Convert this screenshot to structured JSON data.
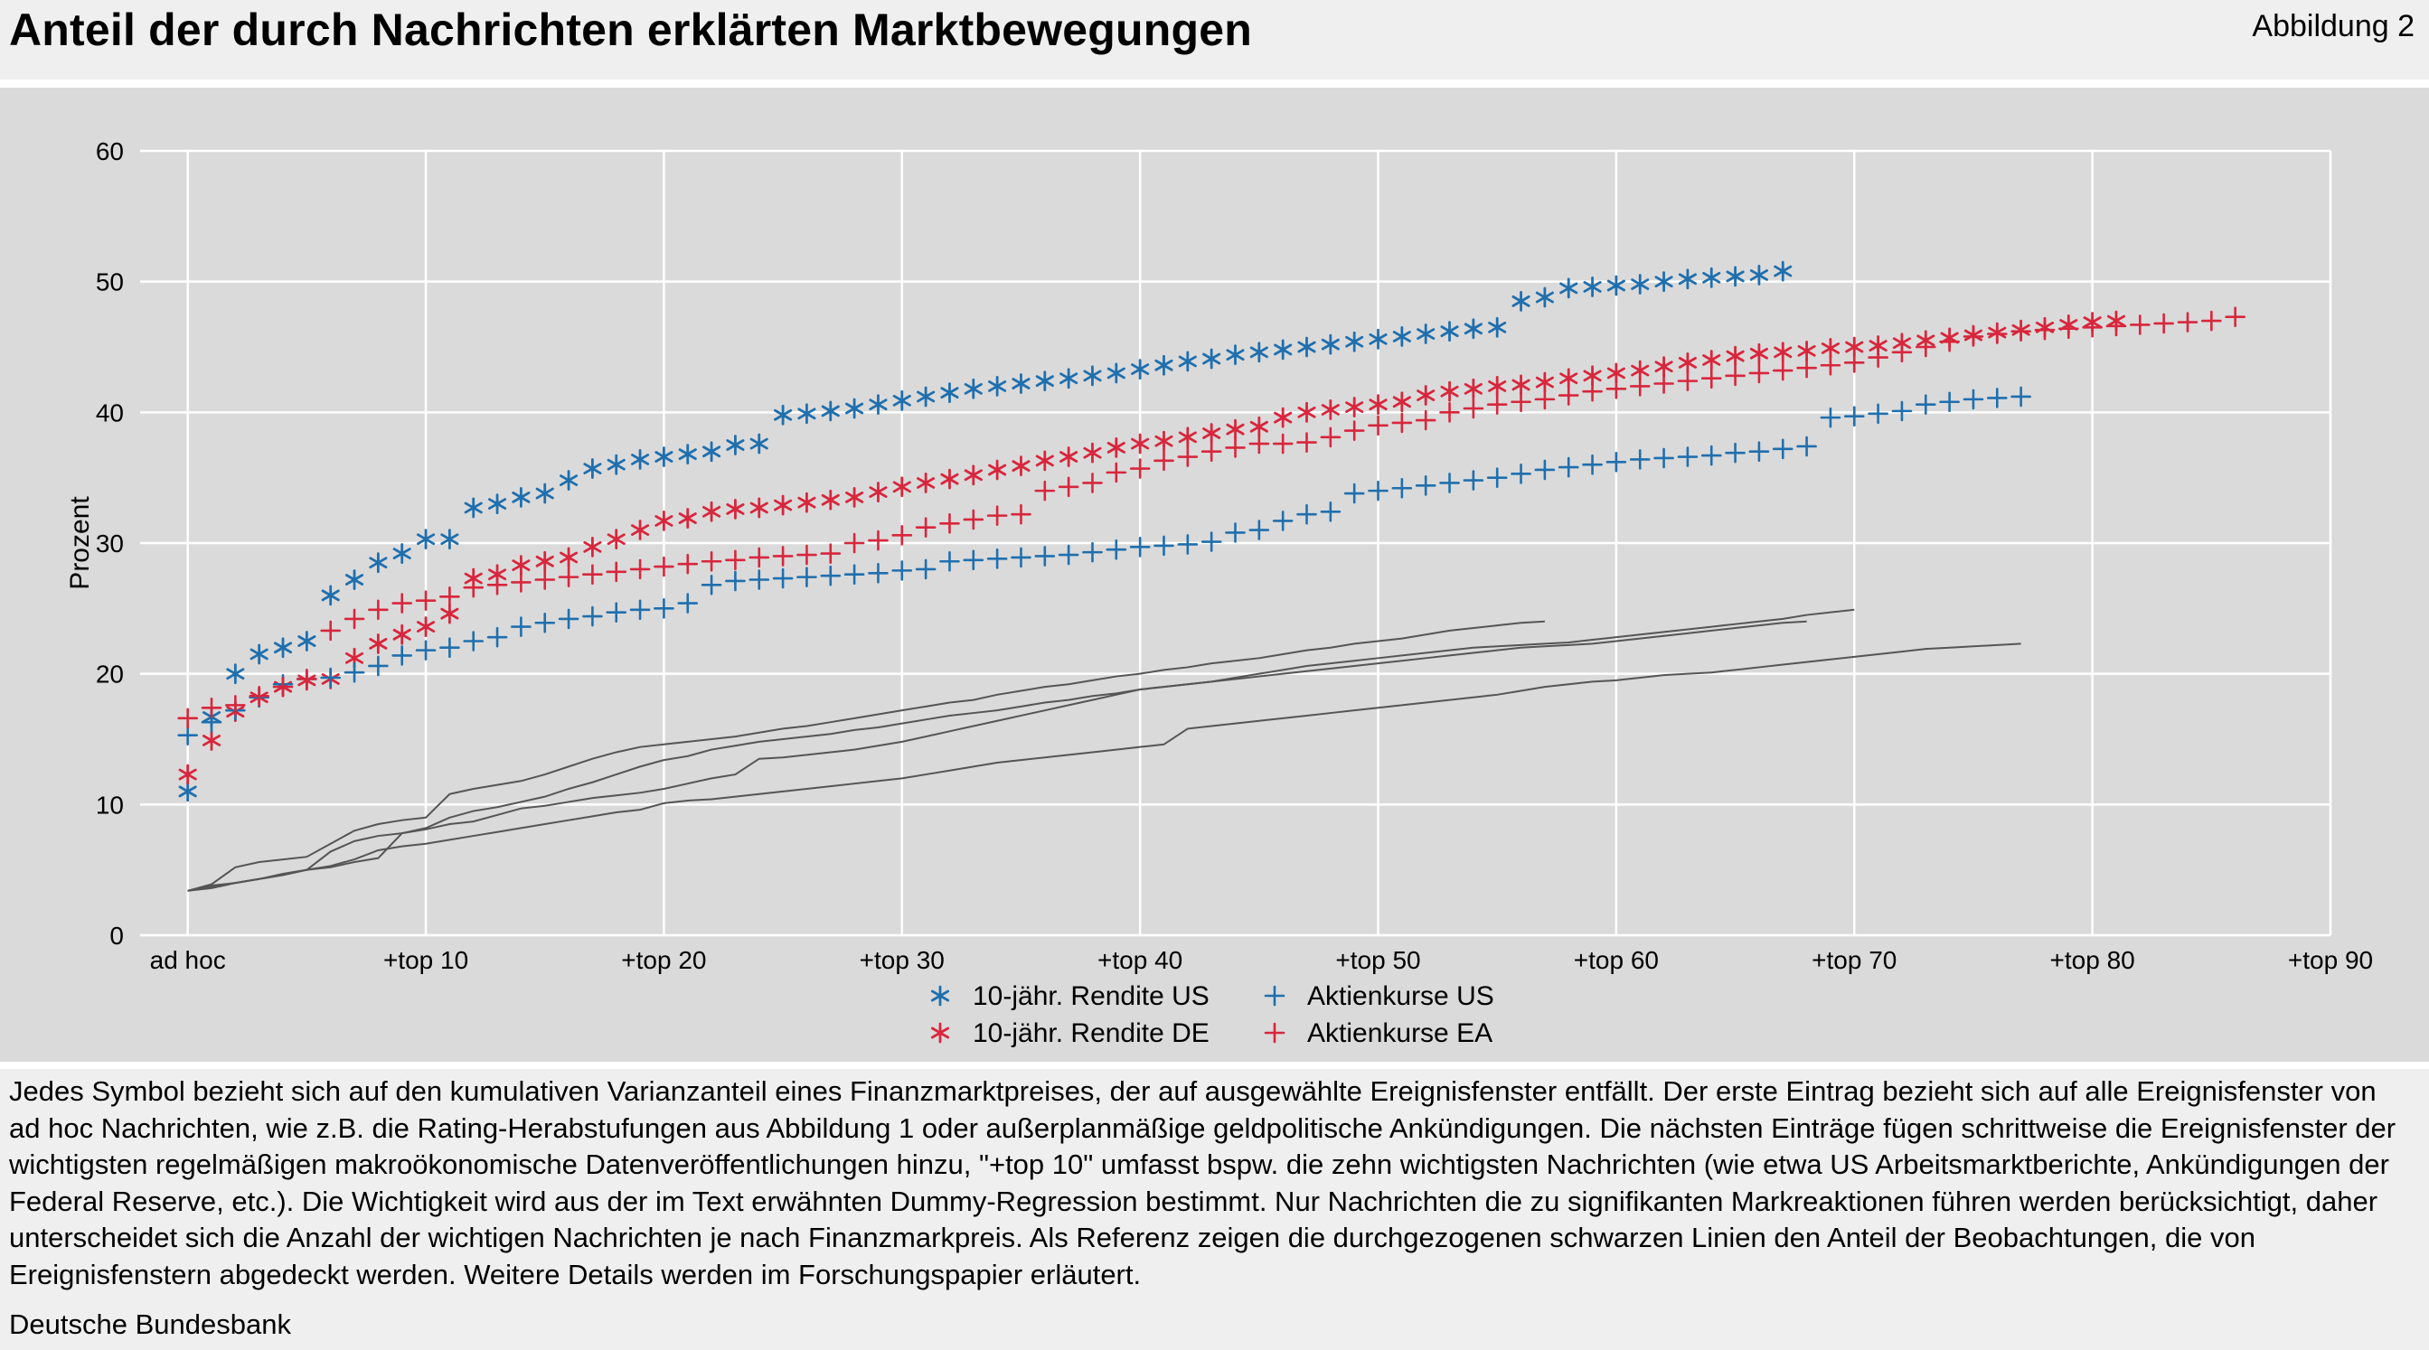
{
  "header": {
    "title": "Anteil der durch Nachrichten erklärten Marktbewegungen",
    "figure_label": "Abbildung 2"
  },
  "footer": {
    "note": "Jedes Symbol bezieht sich auf den kumulativen Varianzanteil eines Finanzmarktpreises, der auf ausgewählte Ereignisfenster entfällt. Der erste Eintrag bezieht sich auf alle Ereignisfenster von ad hoc Nachrichten, wie z.B. die Rating-Herabstufungen aus Abbildung 1 oder außerplanmäßige geldpolitische Ankündigungen. Die nächsten Einträge fügen schrittweise die Ereignisfenster der wichtigsten regelmäßigen makroökonomische Datenveröffentlichungen hinzu, \"+top 10\" umfasst bspw. die zehn wichtigsten Nachrichten (wie etwa US Arbeitsmarktberichte, Ankündigungen der Federal Reserve, etc.). Die Wichtigkeit wird aus der im Text erwähnten Dummy-Regression bestimmt. Nur Nachrichten die zu signifikanten Markreaktionen führen werden berücksichtigt, daher unterscheidet sich die Anzahl der wichtigen Nachrichten je nach Finanzmarkpreis. Als Referenz zeigen die durchgezogenen schwarzen Linien den Anteil der Beobachtungen, die von Ereignisfenstern abgedeckt werden. Weitere Details werden im Forschungspapier erläutert.",
    "source": "Deutsche Bundesbank"
  },
  "chart_data": {
    "type": "scatter",
    "title": "",
    "xlabel": "",
    "ylabel": "Prozent",
    "xlim": [
      -2,
      90
    ],
    "ylim": [
      0,
      60
    ],
    "yticks": [
      0,
      10,
      20,
      30,
      40,
      50,
      60
    ],
    "xticks": [
      {
        "x": 0,
        "label": "ad hoc"
      },
      {
        "x": 10,
        "label": "+top 10"
      },
      {
        "x": 20,
        "label": "+top 20"
      },
      {
        "x": 30,
        "label": "+top 30"
      },
      {
        "x": 40,
        "label": "+top 40"
      },
      {
        "x": 50,
        "label": "+top 50"
      },
      {
        "x": 60,
        "label": "+top 60"
      },
      {
        "x": 70,
        "label": "+top 70"
      },
      {
        "x": 80,
        "label": "+top 80"
      },
      {
        "x": 90,
        "label": "+top 90"
      }
    ],
    "grid": true,
    "legend_position": "bottom-center",
    "colors": {
      "blue": "#1f6fae",
      "red": "#d8263c",
      "line": "#555555",
      "grid": "#ffffff",
      "panel": "#dadada"
    },
    "series": [
      {
        "name": "10-jähr. Rendite US",
        "marker": "asterisk",
        "color": "#1f6fae",
        "values": [
          11.0,
          16.7,
          20.0,
          21.5,
          22.0,
          22.5,
          26.0,
          27.2,
          28.5,
          29.2,
          30.3,
          30.3,
          32.7,
          33.0,
          33.5,
          33.8,
          34.8,
          35.7,
          36.0,
          36.4,
          36.6,
          36.8,
          37.0,
          37.5,
          37.6,
          39.8,
          39.9,
          40.1,
          40.3,
          40.6,
          40.9,
          41.2,
          41.5,
          41.8,
          42.0,
          42.2,
          42.4,
          42.6,
          42.8,
          43.0,
          43.3,
          43.6,
          43.9,
          44.1,
          44.4,
          44.6,
          44.8,
          45.0,
          45.2,
          45.4,
          45.6,
          45.8,
          46.0,
          46.2,
          46.4,
          46.5,
          48.5,
          48.8,
          49.5,
          49.6,
          49.7,
          49.8,
          50.0,
          50.2,
          50.3,
          50.4,
          50.5,
          50.8
        ]
      },
      {
        "name": "10-jähr. Rendite DE",
        "marker": "asterisk",
        "color": "#d8263c",
        "values": [
          12.3,
          14.9,
          17.1,
          18.2,
          19.0,
          19.5,
          19.6,
          21.2,
          22.3,
          23.0,
          23.6,
          24.6,
          27.3,
          27.6,
          28.3,
          28.6,
          28.9,
          29.7,
          30.3,
          31.0,
          31.7,
          31.9,
          32.4,
          32.6,
          32.7,
          32.9,
          33.1,
          33.3,
          33.5,
          33.9,
          34.3,
          34.6,
          34.9,
          35.2,
          35.6,
          35.9,
          36.3,
          36.6,
          36.9,
          37.3,
          37.6,
          37.8,
          38.1,
          38.4,
          38.7,
          38.9,
          39.6,
          40.0,
          40.2,
          40.4,
          40.6,
          40.8,
          41.3,
          41.6,
          41.8,
          42.0,
          42.1,
          42.3,
          42.6,
          42.8,
          43.0,
          43.2,
          43.5,
          43.8,
          44.0,
          44.3,
          44.5,
          44.6,
          44.7,
          44.9,
          45.0,
          45.1,
          45.3,
          45.5,
          45.7,
          45.9,
          46.1,
          46.3,
          46.5,
          46.7,
          46.9,
          47.0
        ]
      },
      {
        "name": "Aktienkurse US",
        "marker": "plus",
        "color": "#1f6fae",
        "values": [
          15.3,
          16.3,
          17.2,
          18.2,
          19.2,
          19.6,
          19.7,
          20.1,
          20.6,
          21.4,
          21.8,
          22.0,
          22.5,
          22.8,
          23.6,
          23.9,
          24.2,
          24.4,
          24.7,
          24.9,
          25.0,
          25.4,
          26.8,
          27.1,
          27.2,
          27.3,
          27.4,
          27.5,
          27.6,
          27.7,
          27.9,
          28.0,
          28.6,
          28.7,
          28.8,
          28.9,
          29.0,
          29.1,
          29.3,
          29.5,
          29.7,
          29.8,
          29.9,
          30.1,
          30.8,
          31.0,
          31.7,
          32.2,
          32.4,
          33.8,
          34.0,
          34.2,
          34.4,
          34.6,
          34.8,
          35.0,
          35.3,
          35.6,
          35.8,
          36.0,
          36.2,
          36.4,
          36.5,
          36.6,
          36.7,
          36.9,
          37.0,
          37.2,
          37.4,
          39.6,
          39.7,
          39.9,
          40.1,
          40.6,
          40.8,
          41.0,
          41.1,
          41.2
        ]
      },
      {
        "name": "Aktienkurse EA",
        "marker": "plus",
        "color": "#d8263c",
        "values": [
          16.6,
          17.4,
          17.6,
          18.3,
          19.0,
          19.6,
          23.3,
          24.2,
          24.9,
          25.4,
          25.6,
          25.9,
          26.6,
          26.8,
          27.0,
          27.2,
          27.4,
          27.6,
          27.8,
          28.0,
          28.2,
          28.4,
          28.6,
          28.7,
          28.9,
          29.0,
          29.1,
          29.2,
          30.0,
          30.2,
          30.6,
          31.2,
          31.5,
          31.8,
          32.1,
          32.2,
          34.0,
          34.3,
          34.6,
          35.4,
          35.7,
          36.3,
          36.6,
          37.0,
          37.3,
          37.6,
          37.6,
          37.7,
          38.1,
          38.6,
          39.0,
          39.2,
          39.4,
          40.0,
          40.3,
          40.6,
          40.8,
          41.0,
          41.3,
          41.6,
          41.8,
          42.0,
          42.2,
          42.4,
          42.6,
          42.8,
          43.0,
          43.2,
          43.4,
          43.6,
          43.8,
          44.2,
          44.6,
          45.0,
          45.4,
          45.8,
          46.0,
          46.2,
          46.3,
          46.4,
          46.5,
          46.6,
          46.7,
          46.8,
          46.9,
          47.0,
          47.3
        ]
      },
      {
        "name": "",
        "marker": "line",
        "color": "#555555",
        "values": [
          3.4,
          3.8,
          4.0,
          4.3,
          4.6,
          5.0,
          5.2,
          5.6,
          5.9,
          7.8,
          8.2,
          9.0,
          9.5,
          9.8,
          10.2,
          10.6,
          11.2,
          11.7,
          12.3,
          12.9,
          13.4,
          13.7,
          14.2,
          14.5,
          14.8,
          15.0,
          15.2,
          15.4,
          15.7,
          15.9,
          16.2,
          16.5,
          16.8,
          17.0,
          17.2,
          17.5,
          17.8,
          18.0,
          18.3,
          18.5,
          18.8,
          19.0,
          19.2,
          19.4,
          19.6,
          19.8,
          20.0,
          20.2,
          20.4,
          20.6,
          20.8,
          21.0,
          21.2,
          21.4,
          21.6,
          21.8,
          22.0,
          22.1,
          22.2,
          22.3,
          22.5,
          22.7,
          22.9,
          23.1,
          23.3,
          23.5,
          23.7,
          23.9,
          24.0
        ]
      },
      {
        "name": "",
        "marker": "line",
        "color": "#555555",
        "values": [
          3.4,
          3.9,
          5.2,
          5.6,
          5.8,
          6.0,
          7.0,
          8.0,
          8.5,
          8.8,
          9.0,
          10.8,
          11.2,
          11.5,
          11.8,
          12.3,
          12.9,
          13.5,
          14.0,
          14.4,
          14.6,
          14.8,
          15.0,
          15.2,
          15.5,
          15.8,
          16.0,
          16.3,
          16.6,
          16.9,
          17.2,
          17.5,
          17.8,
          18.0,
          18.4,
          18.7,
          19.0,
          19.2,
          19.5,
          19.8,
          20.0,
          20.3,
          20.5,
          20.8,
          21.0,
          21.2,
          21.5,
          21.8,
          22.0,
          22.3,
          22.5,
          22.7,
          23.0,
          23.3,
          23.5,
          23.7,
          23.9,
          24.0
        ]
      },
      {
        "name": "",
        "marker": "line",
        "color": "#555555",
        "values": [
          3.4,
          3.6,
          4.0,
          4.3,
          4.7,
          5.0,
          6.4,
          7.2,
          7.6,
          7.8,
          8.1,
          8.5,
          8.7,
          9.2,
          9.7,
          9.9,
          10.2,
          10.5,
          10.7,
          10.9,
          11.2,
          11.6,
          12.0,
          12.3,
          13.5,
          13.6,
          13.8,
          14.0,
          14.2,
          14.5,
          14.8,
          15.2,
          15.6,
          16.0,
          16.4,
          16.8,
          17.2,
          17.6,
          18.0,
          18.4,
          18.8,
          19.0,
          19.2,
          19.4,
          19.7,
          20.0,
          20.3,
          20.6,
          20.8,
          21.0,
          21.2,
          21.4,
          21.6,
          21.8,
          22.0,
          22.1,
          22.2,
          22.3,
          22.4,
          22.6,
          22.8,
          23.0,
          23.2,
          23.4,
          23.6,
          23.8,
          24.0,
          24.2,
          24.5,
          24.7,
          24.9
        ]
      },
      {
        "name": "",
        "marker": "line",
        "color": "#555555",
        "values": [
          3.4,
          3.7,
          4.0,
          4.3,
          4.6,
          5.0,
          5.3,
          5.8,
          6.5,
          6.8,
          7.0,
          7.3,
          7.6,
          7.9,
          8.2,
          8.5,
          8.8,
          9.1,
          9.4,
          9.6,
          10.1,
          10.3,
          10.4,
          10.6,
          10.8,
          11.0,
          11.2,
          11.4,
          11.6,
          11.8,
          12.0,
          12.3,
          12.6,
          12.9,
          13.2,
          13.4,
          13.6,
          13.8,
          14.0,
          14.2,
          14.4,
          14.6,
          15.8,
          16.0,
          16.2,
          16.4,
          16.6,
          16.8,
          17.0,
          17.2,
          17.4,
          17.6,
          17.8,
          18.0,
          18.2,
          18.4,
          18.7,
          19.0,
          19.2,
          19.4,
          19.5,
          19.7,
          19.9,
          20.0,
          20.1,
          20.3,
          20.5,
          20.7,
          20.9,
          21.1,
          21.3,
          21.5,
          21.7,
          21.9,
          22.0,
          22.1,
          22.2,
          22.3
        ]
      }
    ]
  }
}
